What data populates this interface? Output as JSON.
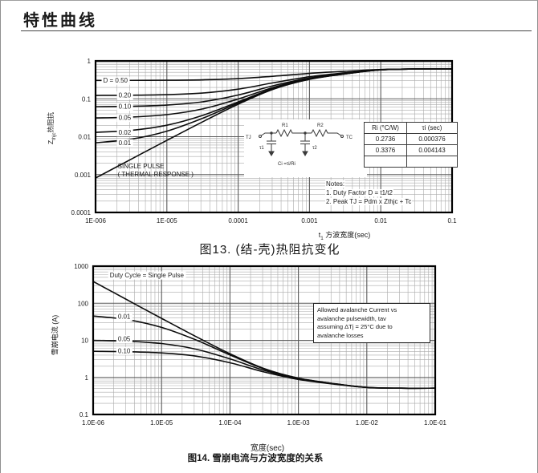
{
  "page": {
    "title": "特性曲线"
  },
  "fig13": {
    "caption": "图13.  (结-壳)热阻抗变化",
    "xlabel_main": "t",
    "xlabel_sub": "1",
    "xlabel_rest": " 方波宽度(sec)",
    "ylabel_main": "Z",
    "ylabel_sub": "thjc",
    "ylabel_rest": "热阻抗",
    "table": {
      "headers": [
        "Ri (°C/W)",
        "τi (sec)"
      ],
      "rows": [
        [
          "0.2736",
          "0.000376"
        ],
        [
          "0.3376",
          "0.004143"
        ],
        [
          "",
          ""
        ]
      ]
    },
    "notes": [
      "Notes:",
      "1. Duty Factor D = t1/t2",
      "2. Peak TJ = Pdm x Zthjc + Tc"
    ],
    "circuit": {
      "tj": "TJ",
      "tc": "TC",
      "r1": "R1",
      "r2": "R2",
      "tau1": "τ1",
      "tau2": "τ2",
      "formula": "Ci =τi/Ri"
    }
  },
  "fig14": {
    "caption": "图14. 雪崩电流与方波宽度的关系",
    "xlabel": "宽度(sec)",
    "ylabel": "雪崩电流 (A)",
    "note_lines": [
      "Allowed avalanche Current vs",
      "avalanche  pulsewidth,  tav",
      "assuming  ΔTj = 25°C  due to",
      "avalanche losses"
    ]
  },
  "chart_data": [
    {
      "id": "fig13",
      "type": "line",
      "title": "图13. (结-壳)热阻抗变化",
      "xlabel": "t1 方波宽度(sec)",
      "ylabel": "Zthjc热阻抗",
      "x_scale": "log",
      "y_scale": "log",
      "grid": true,
      "legend_position": "none",
      "xlim": [
        1e-06,
        0.1
      ],
      "ylim": [
        0.0001,
        1
      ],
      "x_ticks": [
        "1E-006",
        "1E-005",
        "0.0001",
        "0.001",
        "0.01",
        "0.1"
      ],
      "y_ticks": [
        "1",
        "0.1",
        "0.01",
        "0.001",
        "0.0001"
      ],
      "x": [
        1e-06,
        3.16e-06,
        1e-05,
        3.16e-05,
        0.0001,
        0.000316,
        0.001,
        0.00316,
        0.01,
        0.0316,
        0.1
      ],
      "series": [
        {
          "name": "D=0.50",
          "values": [
            0.306,
            0.3069,
            0.3096,
            0.3179,
            0.3416,
            0.3958,
            0.469,
            0.5324,
            0.5961,
            0.6111,
            0.6112
          ]
        },
        {
          "name": "D=0.20",
          "values": [
            0.1229,
            0.1243,
            0.1286,
            0.1419,
            0.1798,
            0.2665,
            0.3837,
            0.4852,
            0.587,
            0.6111,
            0.6112
          ]
        },
        {
          "name": "D=0.10",
          "values": [
            0.0618,
            0.0634,
            0.0683,
            0.0833,
            0.1259,
            0.2234,
            0.3553,
            0.4694,
            0.584,
            0.6111,
            0.6112
          ]
        },
        {
          "name": "D=0.05",
          "values": [
            0.0313,
            0.033,
            0.0382,
            0.054,
            0.0989,
            0.2019,
            0.3411,
            0.4616,
            0.5825,
            0.611,
            0.6112
          ]
        },
        {
          "name": "D=0.02",
          "values": [
            0.013,
            0.0147,
            0.0201,
            0.0364,
            0.0827,
            0.1889,
            0.3325,
            0.4568,
            0.5816,
            0.611,
            0.6112
          ]
        },
        {
          "name": "D=0.01",
          "values": [
            0.0069,
            0.0086,
            0.014,
            0.0305,
            0.0773,
            0.1846,
            0.3297,
            0.4553,
            0.5813,
            0.611,
            0.6112
          ]
        },
        {
          "name": "Single Pulse",
          "values": [
            0.00081,
            0.00255,
            0.008,
            0.0246,
            0.0719,
            0.1803,
            0.3268,
            0.4537,
            0.581,
            0.611,
            0.6112
          ]
        }
      ],
      "curve_labels": [
        {
          "text": "D = 0.50",
          "x": 1.28e-06,
          "y": 0.3,
          "bg": true
        },
        {
          "text": "0.20",
          "x": 2.1e-06,
          "y": 0.1225,
          "bg": true
        },
        {
          "text": "0.10",
          "x": 2.1e-06,
          "y": 0.0617,
          "bg": true
        },
        {
          "text": "0.05",
          "x": 2.1e-06,
          "y": 0.0312,
          "bg": true
        },
        {
          "text": "0.02",
          "x": 2.1e-06,
          "y": 0.0129,
          "bg": true
        },
        {
          "text": "0.01",
          "x": 2.1e-06,
          "y": 0.00675,
          "bg": true
        },
        {
          "text": "SINGLE PULSE",
          "x": 2.05e-06,
          "y": 0.00165,
          "bg": false
        },
        {
          "text": "( THERMAL RESPONSE )",
          "x": 2.05e-06,
          "y": 0.00102,
          "bg": false
        }
      ]
    },
    {
      "id": "fig14",
      "type": "line",
      "title": "图14. 雪崩电流与方波宽度的关系",
      "xlabel": "宽度(sec)",
      "ylabel": "雪崩电流 (A)",
      "x_scale": "log",
      "y_scale": "log",
      "grid": true,
      "legend_position": "none",
      "xlim": [
        1e-06,
        0.1
      ],
      "ylim": [
        0.1,
        1000
      ],
      "x_ticks": [
        "1.0E-06",
        "1.0E-05",
        "1.0E-04",
        "1.0E-03",
        "1.0E-02",
        "1.0E-01"
      ],
      "y_ticks": [
        "1000",
        "100",
        "10",
        "1",
        "0.1"
      ],
      "x": [
        1e-06,
        3.16e-06,
        1e-05,
        3.16e-05,
        0.0001,
        0.000316,
        0.001,
        0.00316,
        0.01,
        0.0316,
        0.1
      ],
      "series": [
        {
          "name": "Single Pulse",
          "values": [
            387,
            122.7,
            39.1,
            12.7,
            4.34,
            1.73,
            0.956,
            0.689,
            0.538,
            0.511,
            0.511
          ]
        },
        {
          "name": "D=0.01",
          "values": [
            45.2,
            36.2,
            22.3,
            10.3,
            4.04,
            1.69,
            0.948,
            0.686,
            0.538,
            0.511,
            0.511
          ]
        },
        {
          "name": "D=0.05",
          "values": [
            9.98,
            9.48,
            8.19,
            5.79,
            3.16,
            1.55,
            0.916,
            0.677,
            0.537,
            0.511,
            0.511
          ]
        },
        {
          "name": "D=0.10",
          "values": [
            5.05,
            4.93,
            4.57,
            3.75,
            2.48,
            1.4,
            0.88,
            0.666,
            0.535,
            0.511,
            0.511
          ]
        }
      ],
      "curve_labels": [
        {
          "text": "Duty Cycle = Single Pulse",
          "x": 1.75e-06,
          "y": 560,
          "bg": true
        },
        {
          "text": "0.01",
          "x": 2.3e-06,
          "y": 43,
          "bg": true
        },
        {
          "text": "0.05",
          "x": 2.3e-06,
          "y": 10.8,
          "bg": true
        },
        {
          "text": "0.10",
          "x": 2.3e-06,
          "y": 5.15,
          "bg": true
        }
      ]
    }
  ]
}
